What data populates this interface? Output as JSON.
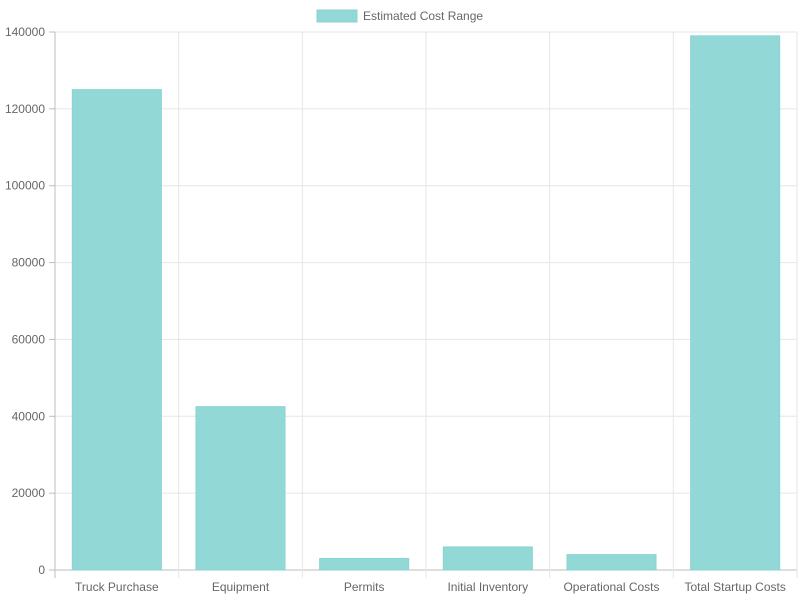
{
  "chart_data": {
    "type": "bar",
    "title": "",
    "xlabel": "",
    "ylabel": "",
    "legend": {
      "label": "Estimated Cost Range",
      "placement": "top-center"
    },
    "categories": [
      "Truck Purchase",
      "Equipment",
      "Permits",
      "Initial Inventory",
      "Operational Costs",
      "Total Startup Costs"
    ],
    "series": [
      {
        "name": "Estimated Cost Range",
        "values": [
          125000,
          42500,
          3000,
          6000,
          4000,
          139000
        ]
      }
    ],
    "ylim": [
      0,
      140000
    ],
    "yticks": [
      "0",
      "20000",
      "40000",
      "60000",
      "80000",
      "100000",
      "120000",
      "140000"
    ],
    "grid": true,
    "colors": {
      "bar_fill": "#92d8d7",
      "bar_stroke": "#8ad3d2",
      "grid": "#e6e6e6",
      "axis": "#bdbdbd",
      "text": "#666666"
    }
  }
}
